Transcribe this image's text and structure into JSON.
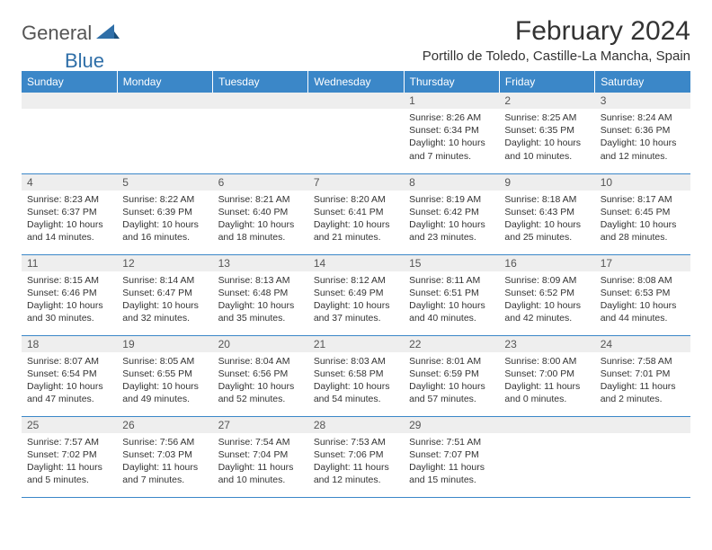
{
  "logo": {
    "text1": "General",
    "text2": "Blue"
  },
  "title": "February 2024",
  "location": "Portillo de Toledo, Castille-La Mancha, Spain",
  "colors": {
    "header_bg": "#3b87c8",
    "header_text": "#ffffff",
    "daynum_bg": "#eeeeee",
    "border": "#3b87c8",
    "body_text": "#333333",
    "logo_gray": "#555555",
    "logo_blue": "#2f6fa8",
    "page_bg": "#ffffff"
  },
  "typography": {
    "title_fontsize": 30,
    "location_fontsize": 15,
    "header_fontsize": 12,
    "daynum_fontsize": 12,
    "cell_fontsize": 10.5
  },
  "day_headers": [
    "Sunday",
    "Monday",
    "Tuesday",
    "Wednesday",
    "Thursday",
    "Friday",
    "Saturday"
  ],
  "weeks": [
    [
      null,
      null,
      null,
      null,
      {
        "n": "1",
        "sunrise": "8:26 AM",
        "sunset": "6:34 PM",
        "daylight": "10 hours and 7 minutes."
      },
      {
        "n": "2",
        "sunrise": "8:25 AM",
        "sunset": "6:35 PM",
        "daylight": "10 hours and 10 minutes."
      },
      {
        "n": "3",
        "sunrise": "8:24 AM",
        "sunset": "6:36 PM",
        "daylight": "10 hours and 12 minutes."
      }
    ],
    [
      {
        "n": "4",
        "sunrise": "8:23 AM",
        "sunset": "6:37 PM",
        "daylight": "10 hours and 14 minutes."
      },
      {
        "n": "5",
        "sunrise": "8:22 AM",
        "sunset": "6:39 PM",
        "daylight": "10 hours and 16 minutes."
      },
      {
        "n": "6",
        "sunrise": "8:21 AM",
        "sunset": "6:40 PM",
        "daylight": "10 hours and 18 minutes."
      },
      {
        "n": "7",
        "sunrise": "8:20 AM",
        "sunset": "6:41 PM",
        "daylight": "10 hours and 21 minutes."
      },
      {
        "n": "8",
        "sunrise": "8:19 AM",
        "sunset": "6:42 PM",
        "daylight": "10 hours and 23 minutes."
      },
      {
        "n": "9",
        "sunrise": "8:18 AM",
        "sunset": "6:43 PM",
        "daylight": "10 hours and 25 minutes."
      },
      {
        "n": "10",
        "sunrise": "8:17 AM",
        "sunset": "6:45 PM",
        "daylight": "10 hours and 28 minutes."
      }
    ],
    [
      {
        "n": "11",
        "sunrise": "8:15 AM",
        "sunset": "6:46 PM",
        "daylight": "10 hours and 30 minutes."
      },
      {
        "n": "12",
        "sunrise": "8:14 AM",
        "sunset": "6:47 PM",
        "daylight": "10 hours and 32 minutes."
      },
      {
        "n": "13",
        "sunrise": "8:13 AM",
        "sunset": "6:48 PM",
        "daylight": "10 hours and 35 minutes."
      },
      {
        "n": "14",
        "sunrise": "8:12 AM",
        "sunset": "6:49 PM",
        "daylight": "10 hours and 37 minutes."
      },
      {
        "n": "15",
        "sunrise": "8:11 AM",
        "sunset": "6:51 PM",
        "daylight": "10 hours and 40 minutes."
      },
      {
        "n": "16",
        "sunrise": "8:09 AM",
        "sunset": "6:52 PM",
        "daylight": "10 hours and 42 minutes."
      },
      {
        "n": "17",
        "sunrise": "8:08 AM",
        "sunset": "6:53 PM",
        "daylight": "10 hours and 44 minutes."
      }
    ],
    [
      {
        "n": "18",
        "sunrise": "8:07 AM",
        "sunset": "6:54 PM",
        "daylight": "10 hours and 47 minutes."
      },
      {
        "n": "19",
        "sunrise": "8:05 AM",
        "sunset": "6:55 PM",
        "daylight": "10 hours and 49 minutes."
      },
      {
        "n": "20",
        "sunrise": "8:04 AM",
        "sunset": "6:56 PM",
        "daylight": "10 hours and 52 minutes."
      },
      {
        "n": "21",
        "sunrise": "8:03 AM",
        "sunset": "6:58 PM",
        "daylight": "10 hours and 54 minutes."
      },
      {
        "n": "22",
        "sunrise": "8:01 AM",
        "sunset": "6:59 PM",
        "daylight": "10 hours and 57 minutes."
      },
      {
        "n": "23",
        "sunrise": "8:00 AM",
        "sunset": "7:00 PM",
        "daylight": "11 hours and 0 minutes."
      },
      {
        "n": "24",
        "sunrise": "7:58 AM",
        "sunset": "7:01 PM",
        "daylight": "11 hours and 2 minutes."
      }
    ],
    [
      {
        "n": "25",
        "sunrise": "7:57 AM",
        "sunset": "7:02 PM",
        "daylight": "11 hours and 5 minutes."
      },
      {
        "n": "26",
        "sunrise": "7:56 AM",
        "sunset": "7:03 PM",
        "daylight": "11 hours and 7 minutes."
      },
      {
        "n": "27",
        "sunrise": "7:54 AM",
        "sunset": "7:04 PM",
        "daylight": "11 hours and 10 minutes."
      },
      {
        "n": "28",
        "sunrise": "7:53 AM",
        "sunset": "7:06 PM",
        "daylight": "11 hours and 12 minutes."
      },
      {
        "n": "29",
        "sunrise": "7:51 AM",
        "sunset": "7:07 PM",
        "daylight": "11 hours and 15 minutes."
      },
      null,
      null
    ]
  ],
  "labels": {
    "sunrise": "Sunrise:",
    "sunset": "Sunset:",
    "daylight": "Daylight:"
  }
}
